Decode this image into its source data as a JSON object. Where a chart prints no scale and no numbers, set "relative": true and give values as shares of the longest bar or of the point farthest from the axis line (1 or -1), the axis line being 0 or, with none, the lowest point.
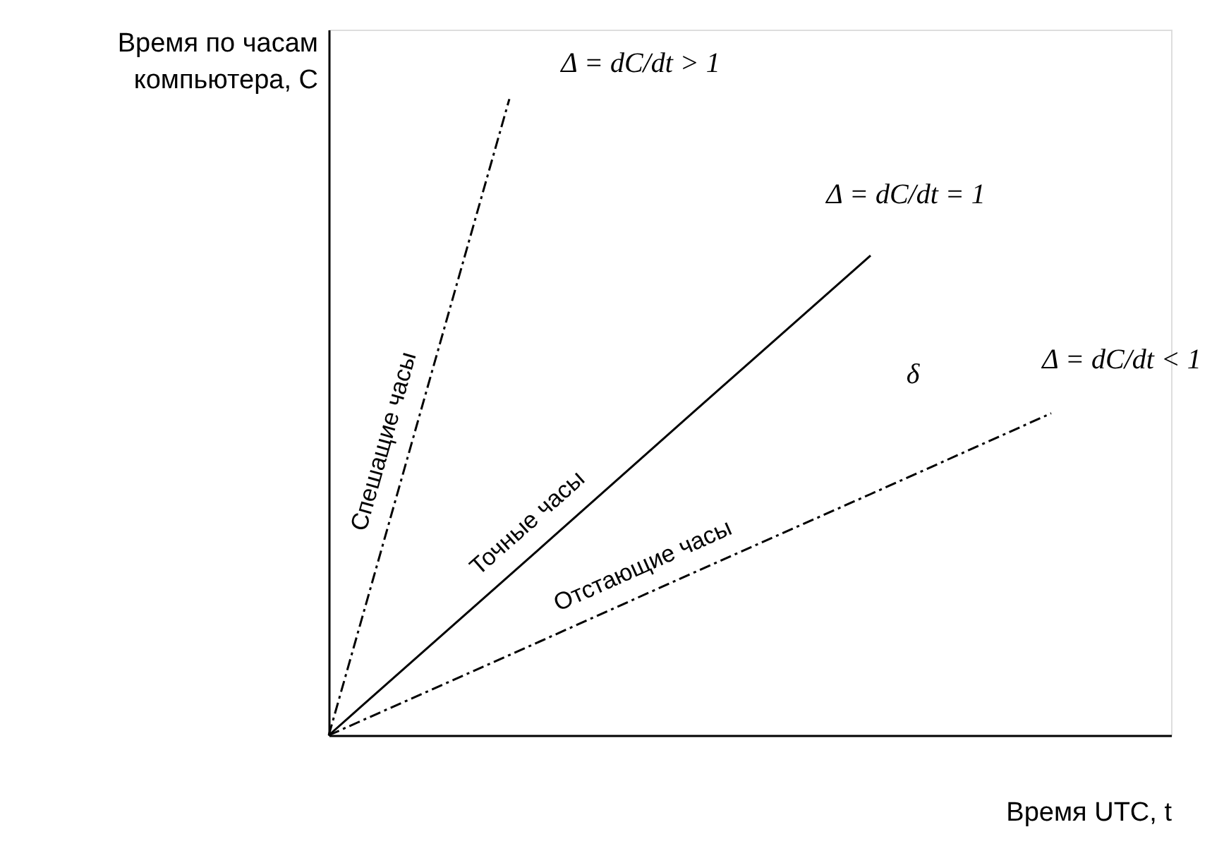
{
  "chart_data": {
    "type": "line",
    "relative": true,
    "xlabel": "Время UTC, t",
    "ylabel": "Время по часам компьютера, C",
    "grid": false,
    "legend": false,
    "marker": "none",
    "categories": [
      null,
      null,
      null,
      null,
      null
    ],
    "series": [
      {
        "name": "Спешащие часы",
        "color": "#000000",
        "line_style": "dashed",
        "values": [
          0,
          1,
          null,
          null,
          null
        ]
      },
      {
        "name": "Точные часы",
        "color": "#000000",
        "line_style": "solid",
        "values": [
          0,
          0.251,
          0.503,
          0.754,
          null
        ]
      },
      {
        "name": "Отстающие часы",
        "color": "#000000",
        "line_style": "dashed",
        "values": [
          0,
          0.126,
          0.253,
          0.379,
          0.506
        ]
      }
    ],
    "annotations": [
      "Δ = dC/dt > 1",
      "Δ = dC/dt = 1",
      "Δ = dC/dt < 1",
      "δ"
    ]
  }
}
